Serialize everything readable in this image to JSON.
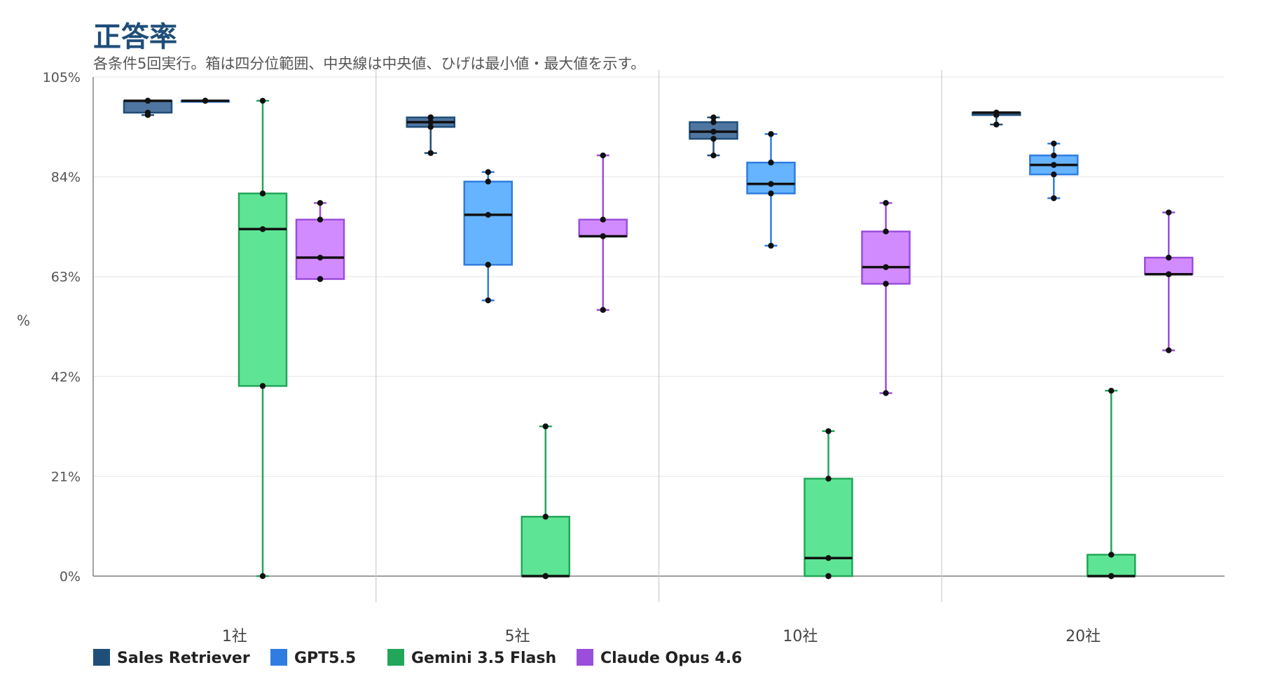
{
  "chart_data": {
    "type": "box",
    "title": "正答率",
    "subtitle": "各条件5回実行。箱は四分位範囲、中央線は中央値、ひげは最小値・最大値を示す。",
    "ylabel": "%",
    "xlabel": "",
    "ylim": [
      0,
      105
    ],
    "yticks": [
      0,
      21,
      42,
      63,
      84,
      105
    ],
    "ytick_labels": [
      "0%",
      "21%",
      "42%",
      "63%",
      "84%",
      "105%"
    ],
    "grid": true,
    "legend_position": "bottom-left",
    "categories": [
      "1社",
      "5社",
      "10社",
      "20社"
    ],
    "series": [
      {
        "name": "Sales Retriever",
        "color": "#1f4e79",
        "fill": "#4f76a0",
        "points": [
          [
            100,
            97.5,
            97,
            100,
            100
          ],
          [
            96.5,
            95.5,
            94.5,
            96.5,
            89
          ],
          [
            96.5,
            93.5,
            95.5,
            92,
            88.5
          ],
          [
            97.5,
            97,
            95,
            97.5,
            97.5
          ]
        ]
      },
      {
        "name": "GPT5.5",
        "color": "#2f7de1",
        "fill": "#66b3ff",
        "points": [
          [
            100,
            100,
            100,
            100,
            100
          ],
          [
            85,
            83,
            76,
            65.5,
            58
          ],
          [
            93,
            87,
            82.5,
            80.5,
            69.5
          ],
          [
            91,
            88.5,
            86.5,
            84.5,
            79.5
          ]
        ]
      },
      {
        "name": "Gemini 3.5 Flash",
        "color": "#22a65a",
        "fill": "#5de494",
        "points": [
          [
            100,
            80.5,
            73,
            40,
            0
          ],
          [
            31.5,
            12.5,
            0,
            0,
            0
          ],
          [
            30.5,
            20.5,
            3.8,
            0,
            0
          ],
          [
            39,
            4.5,
            0,
            0,
            0
          ]
        ]
      },
      {
        "name": "Claude Opus 4.6",
        "color": "#9b4ddb",
        "fill": "#d28bff",
        "points": [
          [
            78.5,
            75,
            67,
            62.5,
            62.5
          ],
          [
            88.5,
            75,
            71.5,
            71.5,
            56
          ],
          [
            78.5,
            72.5,
            65,
            61.5,
            38.5
          ],
          [
            76.5,
            67,
            63.5,
            63.5,
            47.5
          ]
        ]
      }
    ]
  }
}
